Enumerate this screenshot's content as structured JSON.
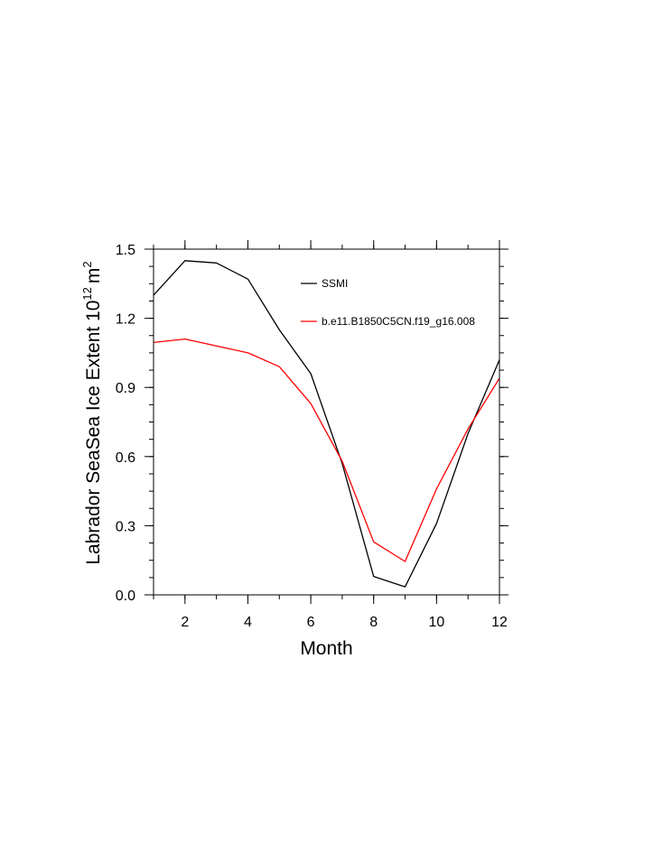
{
  "chart_data": {
    "type": "line",
    "xlabel": "Month",
    "ylabel": "Labrador SeaSea Ice Extent 10",
    "ylabel_sup": "12",
    "ylabel_unit": "m",
    "ylabel_unit_sup": "2",
    "xlim": [
      1,
      12
    ],
    "ylim": [
      0,
      1.5
    ],
    "x_ticks": [
      2,
      4,
      6,
      8,
      10,
      12
    ],
    "y_ticks": [
      0.0,
      0.3,
      0.6,
      0.9,
      1.2,
      1.5
    ],
    "y_tick_labels": [
      "0.0",
      "0.3",
      "0.6",
      "0.9",
      "1.2",
      "1.5"
    ],
    "grid": false,
    "legend_placement": "top-right",
    "x": [
      1,
      2,
      3,
      4,
      5,
      6,
      7,
      8,
      9,
      10,
      11,
      12
    ],
    "series": [
      {
        "name": "SSMI",
        "color": "#000000",
        "values": [
          1.3,
          1.45,
          1.44,
          1.37,
          1.15,
          0.96,
          0.57,
          0.08,
          0.035,
          0.31,
          0.7,
          1.02
        ]
      },
      {
        "name": "b.e11.B1850C5CN.f19_g16.008",
        "color": "#ff0000",
        "values": [
          1.095,
          1.11,
          1.08,
          1.05,
          0.99,
          0.83,
          0.58,
          0.23,
          0.145,
          0.46,
          0.72,
          0.94
        ]
      }
    ]
  }
}
